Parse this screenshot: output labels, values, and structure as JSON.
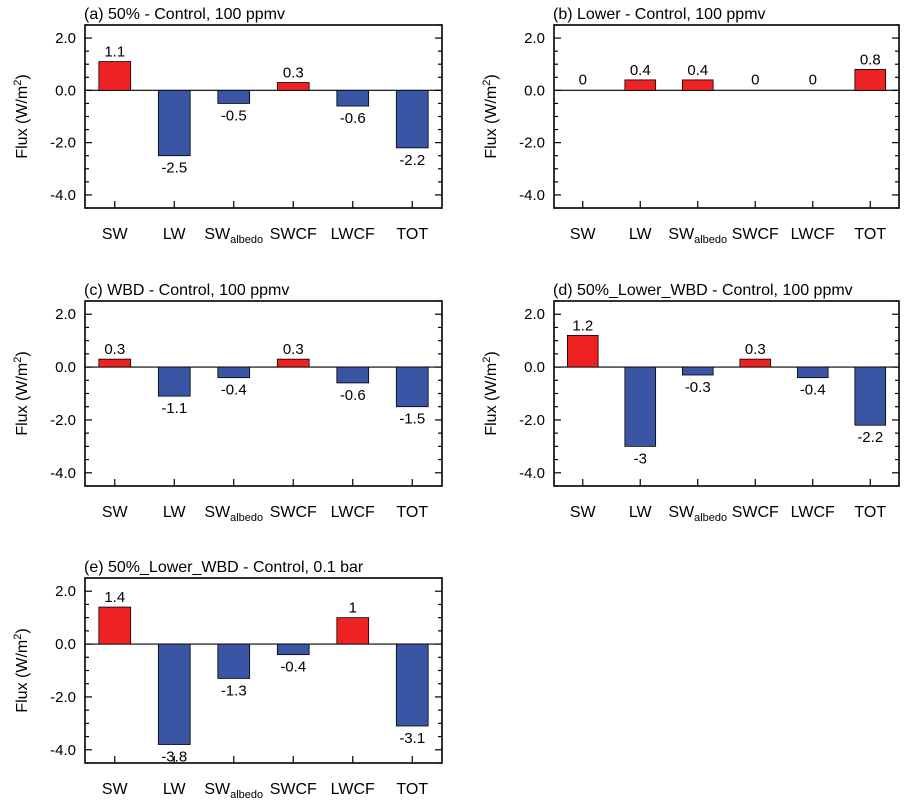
{
  "y_axis_title": "Flux (W/m",
  "y_axis_title_sup": "2",
  "y_axis_title_close": ")",
  "colors": {
    "positive": "#ee2222",
    "negative": "#3a55a4",
    "axis": "#000000"
  },
  "chart_data": [
    {
      "type": "bar",
      "title": "(a) 50% - Control, 100 ppmv",
      "categories": [
        {
          "main": "SW",
          "sub": ""
        },
        {
          "main": "LW",
          "sub": ""
        },
        {
          "main": "SW",
          "sub": "albedo"
        },
        {
          "main": "SWCF",
          "sub": ""
        },
        {
          "main": "LWCF",
          "sub": ""
        },
        {
          "main": "TOT",
          "sub": ""
        }
      ],
      "values": [
        1.1,
        -2.5,
        -0.5,
        0.3,
        -0.6,
        -2.2
      ],
      "labels": [
        "1.1",
        "-2.5",
        "-0.5",
        "0.3",
        "-0.6",
        "-2.2"
      ],
      "yticks": [
        "2.0",
        "0.0",
        "-2.0",
        "-4.0"
      ],
      "ylim": [
        -4.5,
        2.5
      ],
      "ylabel": "Flux (W/m2)"
    },
    {
      "type": "bar",
      "title": "(b) Lower - Control, 100 ppmv",
      "categories": [
        {
          "main": "SW",
          "sub": ""
        },
        {
          "main": "LW",
          "sub": ""
        },
        {
          "main": "SW",
          "sub": "albedo"
        },
        {
          "main": "SWCF",
          "sub": ""
        },
        {
          "main": "LWCF",
          "sub": ""
        },
        {
          "main": "TOT",
          "sub": ""
        }
      ],
      "values": [
        0,
        0.4,
        0.4,
        0,
        0,
        0.8
      ],
      "labels": [
        "0",
        "0.4",
        "0.4",
        "0",
        "0",
        "0.8"
      ],
      "yticks": [
        "2.0",
        "0.0",
        "-2.0",
        "-4.0"
      ],
      "ylim": [
        -4.5,
        2.5
      ],
      "ylabel": "Flux (W/m2)"
    },
    {
      "type": "bar",
      "title": "(c) WBD - Control, 100 ppmv",
      "categories": [
        {
          "main": "SW",
          "sub": ""
        },
        {
          "main": "LW",
          "sub": ""
        },
        {
          "main": "SW",
          "sub": "albedo"
        },
        {
          "main": "SWCF",
          "sub": ""
        },
        {
          "main": "LWCF",
          "sub": ""
        },
        {
          "main": "TOT",
          "sub": ""
        }
      ],
      "values": [
        0.3,
        -1.1,
        -0.4,
        0.3,
        -0.6,
        -1.5
      ],
      "labels": [
        "0.3",
        "-1.1",
        "-0.4",
        "0.3",
        "-0.6",
        "-1.5"
      ],
      "yticks": [
        "2.0",
        "0.0",
        "-2.0",
        "-4.0"
      ],
      "ylim": [
        -4.5,
        2.5
      ],
      "ylabel": "Flux (W/m2)"
    },
    {
      "type": "bar",
      "title": "(d) 50%_Lower_WBD - Control, 100 ppmv",
      "categories": [
        {
          "main": "SW",
          "sub": ""
        },
        {
          "main": "LW",
          "sub": ""
        },
        {
          "main": "SW",
          "sub": "albedo"
        },
        {
          "main": "SWCF",
          "sub": ""
        },
        {
          "main": "LWCF",
          "sub": ""
        },
        {
          "main": "TOT",
          "sub": ""
        }
      ],
      "values": [
        1.2,
        -3,
        -0.3,
        0.3,
        -0.4,
        -2.2
      ],
      "labels": [
        "1.2",
        "-3",
        "-0.3",
        "0.3",
        "-0.4",
        "-2.2"
      ],
      "yticks": [
        "2.0",
        "0.0",
        "-2.0",
        "-4.0"
      ],
      "ylim": [
        -4.5,
        2.5
      ],
      "ylabel": "Flux (W/m2)"
    },
    {
      "type": "bar",
      "title": "(e) 50%_Lower_WBD - Control, 0.1 bar",
      "categories": [
        {
          "main": "SW",
          "sub": ""
        },
        {
          "main": "LW",
          "sub": ""
        },
        {
          "main": "SW",
          "sub": "albedo"
        },
        {
          "main": "SWCF",
          "sub": ""
        },
        {
          "main": "LWCF",
          "sub": ""
        },
        {
          "main": "TOT",
          "sub": ""
        }
      ],
      "values": [
        1.4,
        -3.8,
        -1.3,
        -0.4,
        1,
        -3.1
      ],
      "labels": [
        "1.4",
        "-3.8",
        "-1.3",
        "-0.4",
        "1",
        "-3.1"
      ],
      "yticks": [
        "2.0",
        "0.0",
        "-2.0",
        "-4.0"
      ],
      "ylim": [
        -4.5,
        2.5
      ],
      "ylabel": "Flux (W/m2)"
    }
  ]
}
